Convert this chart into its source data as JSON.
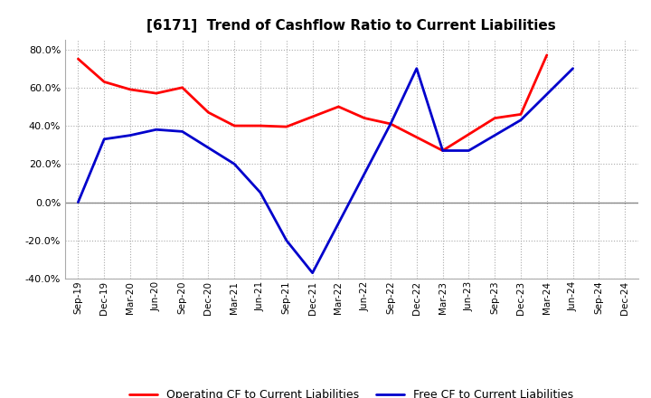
{
  "title": "[6171]  Trend of Cashflow Ratio to Current Liabilities",
  "labels": [
    "Sep-19",
    "Dec-19",
    "Mar-20",
    "Jun-20",
    "Sep-20",
    "Dec-20",
    "Mar-21",
    "Jun-21",
    "Sep-21",
    "Dec-21",
    "Mar-22",
    "Jun-22",
    "Sep-22",
    "Dec-22",
    "Mar-23",
    "Jun-23",
    "Sep-23",
    "Dec-23",
    "Mar-24",
    "Jun-24",
    "Sep-24",
    "Dec-24"
  ],
  "operating_cf_color": "#ff0000",
  "free_cf_color": "#0000cc",
  "background_color": "#ffffff",
  "grid_color": "#aaaaaa",
  "ylim": [
    -40.0,
    85.0
  ],
  "yticks": [
    -40.0,
    -20.0,
    0.0,
    20.0,
    40.0,
    60.0,
    80.0
  ],
  "legend_op": "Operating CF to Current Liabilities",
  "legend_free": "Free CF to Current Liabilities",
  "linewidth": 2.0,
  "op_cf_x": [
    0,
    1,
    2,
    3,
    4,
    5,
    6,
    7,
    8,
    10,
    11,
    12,
    14,
    16,
    17,
    18
  ],
  "op_cf_y": [
    75.0,
    63.0,
    59.0,
    57.0,
    60.0,
    47.0,
    40.0,
    40.0,
    39.5,
    50.0,
    44.0,
    41.0,
    27.0,
    44.0,
    46.0,
    77.0
  ],
  "free_cf_x": [
    0,
    1,
    2,
    3,
    4,
    6,
    7,
    8,
    9,
    12,
    13,
    14,
    15,
    17,
    19
  ],
  "free_cf_y": [
    0.0,
    33.0,
    35.0,
    38.0,
    37.0,
    20.0,
    5.0,
    -20.0,
    -37.0,
    41.0,
    70.0,
    27.0,
    27.0,
    43.0,
    70.0
  ]
}
